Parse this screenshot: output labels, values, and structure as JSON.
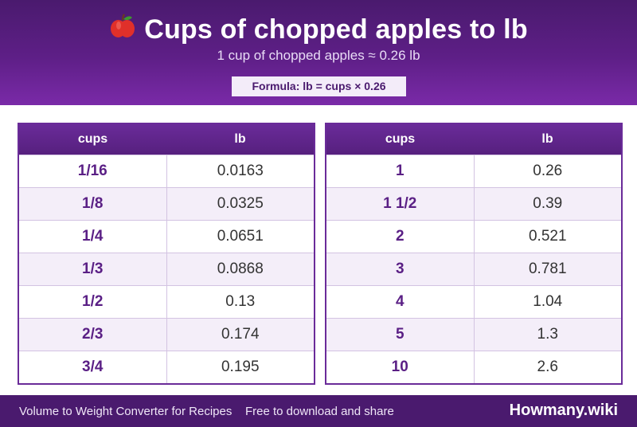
{
  "header": {
    "icon": "apple-icon",
    "title": "Cups of chopped apples to lb",
    "subtitle": "1 cup of chopped apples ≈ 0.26 lb",
    "formula": "Formula: lb = cups × 0.26"
  },
  "tables": {
    "left": {
      "col1": "cups",
      "col2": "lb",
      "rows": [
        {
          "cups": "1/16",
          "lb": "0.0163"
        },
        {
          "cups": "1/8",
          "lb": "0.0325"
        },
        {
          "cups": "1/4",
          "lb": "0.0651"
        },
        {
          "cups": "1/3",
          "lb": "0.0868"
        },
        {
          "cups": "1/2",
          "lb": "0.13"
        },
        {
          "cups": "2/3",
          "lb": "0.174"
        },
        {
          "cups": "3/4",
          "lb": "0.195"
        }
      ]
    },
    "right": {
      "col1": "cups",
      "col2": "lb",
      "rows": [
        {
          "cups": "1",
          "lb": "0.26"
        },
        {
          "cups": "1 1/2",
          "lb": "0.39"
        },
        {
          "cups": "2",
          "lb": "0.521"
        },
        {
          "cups": "3",
          "lb": "0.781"
        },
        {
          "cups": "4",
          "lb": "1.04"
        },
        {
          "cups": "5",
          "lb": "1.3"
        },
        {
          "cups": "10",
          "lb": "2.6"
        }
      ]
    }
  },
  "footer": {
    "left": "Volume to Weight Converter for Recipes",
    "middle": "Free to download and share",
    "brand": "Howmany.wiki"
  },
  "colors": {
    "header_dark": "#4a1a6e",
    "header_light": "#7a2aa8",
    "accent_text": "#5a1f85",
    "row_alt": "#f4eef9"
  }
}
